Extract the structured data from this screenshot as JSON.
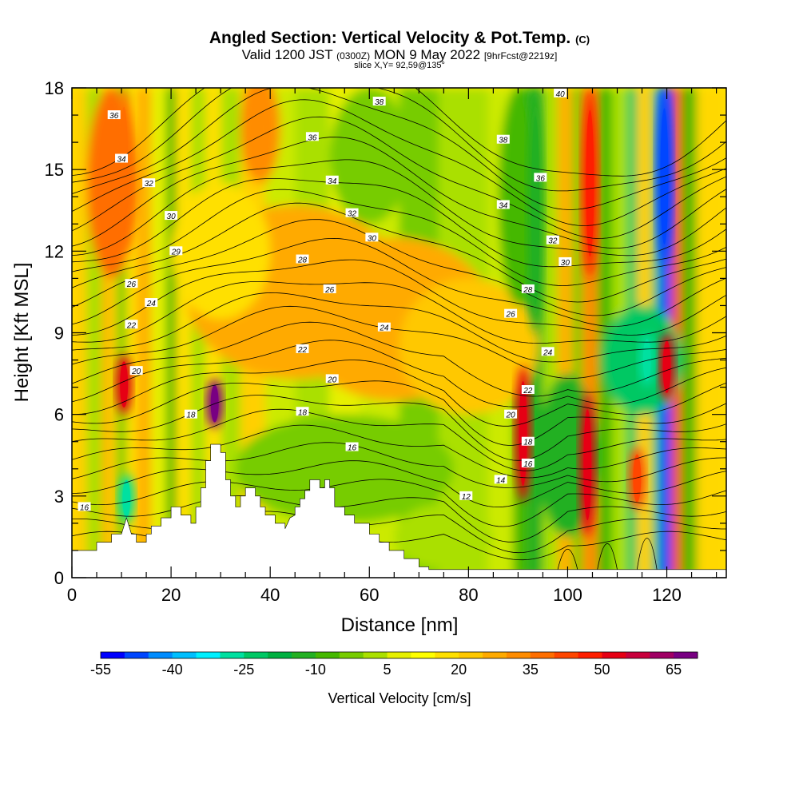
{
  "header": {
    "title": "Angled Section: Vertical Velocity & Pot.Temp.",
    "copyright": "(C)",
    "valid_prefix": "Valid 1200 JST",
    "valid_utc": "(0300Z)",
    "valid_date": "MON 9 May 2022",
    "forecast": "[9hrFcst@2219z]",
    "slice": "slice X,Y= 92,59@135°"
  },
  "chart_data": {
    "type": "heatmap",
    "xlabel": "Distance [nm]",
    "ylabel": "Height [Kft MSL]",
    "xlim": [
      0,
      132
    ],
    "ylim": [
      0,
      18
    ],
    "x_ticks": [
      0,
      20,
      40,
      60,
      80,
      100,
      120
    ],
    "y_ticks": [
      0,
      3,
      6,
      9,
      12,
      15,
      18
    ],
    "grid": false,
    "colorbar": {
      "label": "Vertical Velocity [cm/s]",
      "levels": [
        -55,
        -50,
        -45,
        -40,
        -35,
        -30,
        -25,
        -20,
        -15,
        -10,
        -5,
        0,
        5,
        10,
        15,
        20,
        25,
        30,
        35,
        40,
        45,
        50,
        55,
        60,
        65,
        70
      ],
      "tick_labels": [
        "-55",
        "-40",
        "-25",
        "-10",
        "5",
        "20",
        "35",
        "50",
        "65"
      ],
      "colors": [
        "#0000ff",
        "#0046ff",
        "#008cff",
        "#00bfff",
        "#00f0ff",
        "#00e0a0",
        "#00c864",
        "#00b040",
        "#22b022",
        "#44b800",
        "#77cc00",
        "#aae000",
        "#e6f000",
        "#ffff00",
        "#ffe000",
        "#ffc800",
        "#ffaa00",
        "#ff8c00",
        "#ff6e00",
        "#ff4600",
        "#ff1e00",
        "#e60014",
        "#c8003c",
        "#a00064",
        "#780082"
      ]
    },
    "contours": {
      "variable": "Potential Temperature (C)",
      "labels": [
        {
          "x": 8.5,
          "y": 17.0,
          "text": "36"
        },
        {
          "x": 10.0,
          "y": 15.4,
          "text": "34"
        },
        {
          "x": 15.5,
          "y": 14.5,
          "text": "32"
        },
        {
          "x": 20.0,
          "y": 13.3,
          "text": "30"
        },
        {
          "x": 21.0,
          "y": 12.0,
          "text": "29"
        },
        {
          "x": 12.0,
          "y": 10.8,
          "text": "26"
        },
        {
          "x": 16.0,
          "y": 10.1,
          "text": "24"
        },
        {
          "x": 12.0,
          "y": 9.3,
          "text": "22"
        },
        {
          "x": 13.0,
          "y": 7.6,
          "text": "20"
        },
        {
          "x": 24.0,
          "y": 6.0,
          "text": "18"
        },
        {
          "x": 2.5,
          "y": 2.6,
          "text": "16"
        },
        {
          "x": 62.0,
          "y": 17.5,
          "text": "38"
        },
        {
          "x": 48.5,
          "y": 16.2,
          "text": "36"
        },
        {
          "x": 52.5,
          "y": 14.6,
          "text": "34"
        },
        {
          "x": 56.5,
          "y": 13.4,
          "text": "32"
        },
        {
          "x": 60.5,
          "y": 12.5,
          "text": "30"
        },
        {
          "x": 46.5,
          "y": 11.7,
          "text": "28"
        },
        {
          "x": 52.0,
          "y": 10.6,
          "text": "26"
        },
        {
          "x": 63.0,
          "y": 9.2,
          "text": "24"
        },
        {
          "x": 46.5,
          "y": 8.4,
          "text": "22"
        },
        {
          "x": 52.5,
          "y": 7.3,
          "text": "20"
        },
        {
          "x": 46.5,
          "y": 6.1,
          "text": "18"
        },
        {
          "x": 56.5,
          "y": 4.8,
          "text": "16"
        },
        {
          "x": 98.5,
          "y": 17.8,
          "text": "40"
        },
        {
          "x": 87.0,
          "y": 16.1,
          "text": "38"
        },
        {
          "x": 94.5,
          "y": 14.7,
          "text": "36"
        },
        {
          "x": 87.0,
          "y": 13.7,
          "text": "34"
        },
        {
          "x": 97.0,
          "y": 12.4,
          "text": "32"
        },
        {
          "x": 99.5,
          "y": 11.6,
          "text": "30"
        },
        {
          "x": 92.0,
          "y": 10.6,
          "text": "28"
        },
        {
          "x": 88.5,
          "y": 9.7,
          "text": "26"
        },
        {
          "x": 96.0,
          "y": 8.3,
          "text": "24"
        },
        {
          "x": 92.0,
          "y": 6.9,
          "text": "22"
        },
        {
          "x": 88.5,
          "y": 6.0,
          "text": "20"
        },
        {
          "x": 92.0,
          "y": 5.0,
          "text": "18"
        },
        {
          "x": 92.0,
          "y": 4.2,
          "text": "16"
        },
        {
          "x": 86.5,
          "y": 3.6,
          "text": "14"
        },
        {
          "x": 79.5,
          "y": 3.0,
          "text": "12"
        }
      ]
    },
    "terrain": [
      [
        0,
        1.0
      ],
      [
        5,
        1.0
      ],
      [
        5,
        1.3
      ],
      [
        8,
        1.3
      ],
      [
        8,
        1.6
      ],
      [
        10,
        1.6
      ],
      [
        11,
        2.2
      ],
      [
        12,
        1.6
      ],
      [
        13,
        1.6
      ],
      [
        13,
        1.3
      ],
      [
        15,
        1.3
      ],
      [
        15,
        1.6
      ],
      [
        16,
        1.6
      ],
      [
        16,
        1.9
      ],
      [
        18,
        1.9
      ],
      [
        18,
        2.2
      ],
      [
        20,
        2.2
      ],
      [
        20,
        2.6
      ],
      [
        22,
        2.6
      ],
      [
        22,
        2.3
      ],
      [
        24,
        2.3
      ],
      [
        24,
        2.0
      ],
      [
        25,
        2.0
      ],
      [
        25,
        2.6
      ],
      [
        26,
        2.6
      ],
      [
        26,
        3.3
      ],
      [
        27,
        3.3
      ],
      [
        27,
        4.3
      ],
      [
        28,
        4.3
      ],
      [
        28,
        4.9
      ],
      [
        30,
        4.9
      ],
      [
        30,
        4.6
      ],
      [
        31,
        4.6
      ],
      [
        31,
        3.6
      ],
      [
        32,
        3.6
      ],
      [
        32,
        3.0
      ],
      [
        33,
        3.0
      ],
      [
        33,
        2.6
      ],
      [
        34,
        2.6
      ],
      [
        34,
        3.0
      ],
      [
        35,
        3.0
      ],
      [
        35,
        3.3
      ],
      [
        37,
        3.3
      ],
      [
        37,
        3.0
      ],
      [
        38,
        3.0
      ],
      [
        38,
        2.6
      ],
      [
        39,
        2.6
      ],
      [
        39,
        2.3
      ],
      [
        41,
        2.3
      ],
      [
        41,
        2.0
      ],
      [
        43,
        2.0
      ],
      [
        43,
        1.8
      ],
      [
        44,
        2.2
      ],
      [
        45,
        2.3
      ],
      [
        45,
        2.6
      ],
      [
        46,
        2.6
      ],
      [
        46,
        2.9
      ],
      [
        47,
        2.9
      ],
      [
        47,
        3.2
      ],
      [
        48,
        3.2
      ],
      [
        48,
        3.6
      ],
      [
        50,
        3.6
      ],
      [
        50,
        3.3
      ],
      [
        51,
        3.3
      ],
      [
        51,
        3.6
      ],
      [
        52,
        3.6
      ],
      [
        52,
        3.3
      ],
      [
        53,
        3.3
      ],
      [
        53,
        2.6
      ],
      [
        55,
        2.6
      ],
      [
        55,
        2.3
      ],
      [
        57,
        2.3
      ],
      [
        57,
        2.0
      ],
      [
        60,
        2.0
      ],
      [
        60,
        1.6
      ],
      [
        62,
        1.6
      ],
      [
        62,
        1.3
      ],
      [
        64,
        1.3
      ],
      [
        64,
        1.0
      ],
      [
        67,
        1.0
      ],
      [
        67,
        0.7
      ],
      [
        70,
        0.7
      ],
      [
        70,
        0.4
      ],
      [
        72,
        0.4
      ],
      [
        72,
        0.3
      ],
      [
        132,
        0.3
      ]
    ],
    "series": [
      {
        "x": 10.5,
        "y_base": 12.0,
        "y_top": 18.0,
        "value": 35
      },
      {
        "x": 10.5,
        "y_base": 6.0,
        "y_top": 8.2,
        "value": 50
      },
      {
        "x": 28.8,
        "y_base": 5.5,
        "y_top": 7.3,
        "value": 65
      },
      {
        "x": 37.5,
        "y_base": 15.0,
        "y_top": 18.0,
        "value": 30
      },
      {
        "x": 11.0,
        "y_base": 2.0,
        "y_top": 3.8,
        "value": -30
      },
      {
        "x": 91.0,
        "y_base": 2.8,
        "y_top": 7.8,
        "value": 50
      },
      {
        "x": 104.0,
        "y_base": 1.5,
        "y_top": 6.8,
        "value": 50
      },
      {
        "x": 114.0,
        "y_base": 2.5,
        "y_top": 4.8,
        "value": 40
      },
      {
        "x": 120.0,
        "y_base": 6.5,
        "y_top": 9.0,
        "value": 50
      },
      {
        "x": 119.5,
        "y_base": 11.5,
        "y_top": 18.0,
        "value": -50
      },
      {
        "x": 116.0,
        "y_base": 7.0,
        "y_top": 9.0,
        "value": -30
      },
      {
        "x": 104.5,
        "y_base": 11.0,
        "y_top": 18.0,
        "value": 45
      },
      {
        "x": 93.5,
        "y_base": 9.0,
        "y_top": 18.0,
        "value": -15
      }
    ]
  }
}
